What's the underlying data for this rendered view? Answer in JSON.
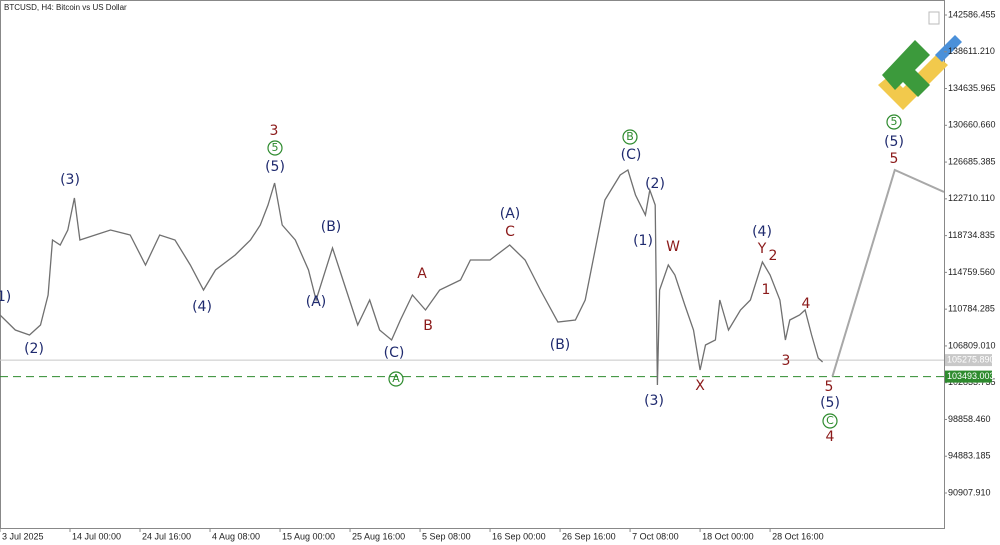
{
  "chart_data": {
    "type": "line",
    "title": "BTCUSD, H4:  Bitcoin vs US Dollar",
    "xlim": [
      0,
      863
    ],
    "ylim": [
      87124,
      144208
    ],
    "xticks": [
      {
        "value": 0,
        "label": "3 Jul 2025"
      },
      {
        "value": 64,
        "label": "14 Jul 00:00"
      },
      {
        "value": 128,
        "label": "24 Jul 16:00"
      },
      {
        "value": 192,
        "label": "4 Aug 08:00"
      },
      {
        "value": 256,
        "label": "15 Aug 00:00"
      },
      {
        "value": 320,
        "label": "25 Aug 16:00"
      },
      {
        "value": 384,
        "label": "5 Sep 08:00"
      },
      {
        "value": 448,
        "label": "16 Sep 00:00"
      },
      {
        "value": 512,
        "label": "26 Sep 16:00"
      },
      {
        "value": 576,
        "label": "7 Oct 08:00"
      },
      {
        "value": 640,
        "label": "18 Oct 00:00"
      },
      {
        "value": 704,
        "label": "28 Oct 16:00"
      }
    ],
    "yticks": [
      142586.455,
      {
        "value": 138611.21,
        "label": "138611.210"
      },
      134635.965,
      {
        "value": 130660.66,
        "label": "130660.660"
      },
      126685.385,
      {
        "value": 122710.11,
        "label": "122710.110"
      },
      118734.835,
      {
        "value": 114759.56,
        "label": "114759.560"
      },
      110784.285,
      {
        "value": 106809.01,
        "label": "106809.010"
      },
      102833.735,
      {
        "value": 98858.46,
        "label": "98858.460"
      },
      94883.185,
      {
        "value": 90907.91,
        "label": "90907.910"
      }
    ],
    "series": [
      {
        "color": "#707070",
        "x": [
          0,
          14,
          27,
          37,
          44,
          48,
          55,
          62,
          68,
          73,
          87,
          101,
          119,
          133,
          146,
          160,
          174,
          186,
          197,
          215,
          229,
          238,
          245,
          251,
          258,
          270,
          282,
          289,
          304,
          315,
          327,
          338,
          347,
          358,
          366,
          377,
          389,
          402,
          421,
          430,
          448,
          466,
          480,
          494,
          510,
          526,
          535,
          544,
          553,
          567,
          574,
          581,
          590,
          594,
          599,
          601,
          603,
          611,
          617,
          626,
          634,
          640,
          645,
          654,
          658,
          666,
          677,
          686,
          697,
          704,
          713,
          718,
          722,
          731,
          736,
          742,
          748,
          752
        ],
        "values": [
          110150,
          108530,
          107990,
          109070,
          112310,
          118260,
          117720,
          119340,
          122800,
          118260,
          118800,
          119340,
          118800,
          115560,
          118800,
          118260,
          115560,
          112850,
          115020,
          116640,
          118260,
          119880,
          122040,
          124420,
          119880,
          118260,
          115020,
          111770,
          117400,
          113400,
          109070,
          111770,
          108530,
          107450,
          109610,
          112310,
          110690,
          112850,
          113940,
          116100,
          116100,
          117720,
          116100,
          112850,
          109400,
          109610,
          111770,
          117180,
          122590,
          125290,
          125830,
          123130,
          120960,
          123670,
          122040,
          102580,
          112850,
          115560,
          114480,
          111230,
          108530,
          104210,
          106910,
          107450,
          111770,
          108530,
          110690,
          111770,
          115880,
          114480,
          111770,
          107450,
          109610,
          110150,
          110690,
          107990,
          105500,
          105070
        ]
      },
      {
        "color": "#a8a8a8",
        "x": [
          761,
          818,
          863
        ],
        "values": [
          103493,
          125830,
          123450
        ]
      }
    ],
    "price_lines": [
      {
        "value": 105275.89,
        "label": "105275.890",
        "color": "#c8c8c8",
        "dashed": false
      },
      {
        "value": 103493.003,
        "label": "103493.003",
        "color": "#2e8b2e",
        "dashed": true
      }
    ],
    "annotations": [
      "1)",
      "(2)",
      "(3)",
      "(4)",
      "3",
      "5",
      "(5)",
      "(B)",
      "(A)",
      "A",
      "B",
      "(C)",
      "A",
      "(A)",
      "C",
      "(B)",
      "B",
      "(C)",
      "(2)",
      "(1)",
      "W",
      "(3)",
      "X",
      "(4)",
      "Y",
      "2",
      "1",
      "4",
      "3",
      "5",
      "(5)",
      "C",
      "4",
      "5",
      "(5)",
      "5"
    ]
  }
}
